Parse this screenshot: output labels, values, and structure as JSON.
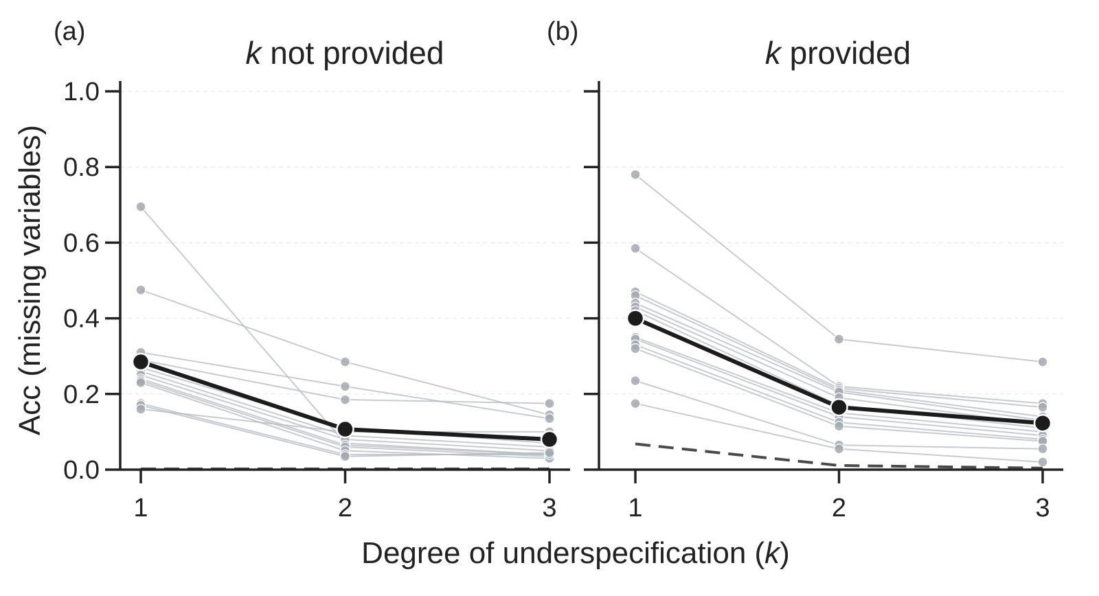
{
  "chart_data": [
    {
      "type": "line",
      "panel_label": "(a)",
      "title_var": "k",
      "title_rest": " not provided",
      "xlabel_text": "Degree of underspecification (",
      "xlabel_var": "k",
      "xlabel_end": ")",
      "ylabel": "Acc (missing variables)",
      "x": [
        1,
        2,
        3
      ],
      "xticks": [
        "1",
        "2",
        "3"
      ],
      "yticks": [
        "0.0",
        "0.2",
        "0.4",
        "0.6",
        "0.8",
        "1.0"
      ],
      "ylim": [
        0,
        1.0
      ],
      "grid": true,
      "models": [
        [
          0.695,
          0.07,
          0.04
        ],
        [
          0.475,
          0.285,
          0.145
        ],
        [
          0.31,
          0.22,
          0.135
        ],
        [
          0.29,
          0.185,
          0.175
        ],
        [
          0.27,
          0.11,
          0.07
        ],
        [
          0.26,
          0.09,
          0.06
        ],
        [
          0.25,
          0.08,
          0.05
        ],
        [
          0.24,
          0.065,
          0.04
        ],
        [
          0.235,
          0.06,
          0.035
        ],
        [
          0.23,
          0.05,
          0.03
        ],
        [
          0.175,
          0.04,
          0.04
        ],
        [
          0.17,
          0.035,
          0.045
        ],
        [
          0.16,
          0.1,
          0.1
        ]
      ],
      "mean": [
        0.285,
        0.107,
        0.08
      ],
      "baseline": [
        0.002,
        0.002,
        0.002
      ]
    },
    {
      "type": "line",
      "panel_label": "(b)",
      "title_var": "k",
      "title_rest": " provided",
      "x": [
        1,
        2,
        3
      ],
      "xticks": [
        "1",
        "2",
        "3"
      ],
      "ylim": [
        0,
        1.0
      ],
      "grid": true,
      "models": [
        [
          0.78,
          0.345,
          0.285
        ],
        [
          0.585,
          0.22,
          0.175
        ],
        [
          0.47,
          0.215,
          0.165
        ],
        [
          0.46,
          0.21,
          0.14
        ],
        [
          0.44,
          0.205,
          0.13
        ],
        [
          0.43,
          0.19,
          0.12
        ],
        [
          0.42,
          0.17,
          0.11
        ],
        [
          0.35,
          0.15,
          0.1
        ],
        [
          0.345,
          0.14,
          0.09
        ],
        [
          0.33,
          0.125,
          0.08
        ],
        [
          0.32,
          0.115,
          0.075
        ],
        [
          0.235,
          0.065,
          0.055
        ],
        [
          0.175,
          0.055,
          0.02
        ]
      ],
      "mean": [
        0.4,
        0.165,
        0.123
      ],
      "baseline": [
        0.068,
        0.011,
        0.004
      ]
    }
  ]
}
